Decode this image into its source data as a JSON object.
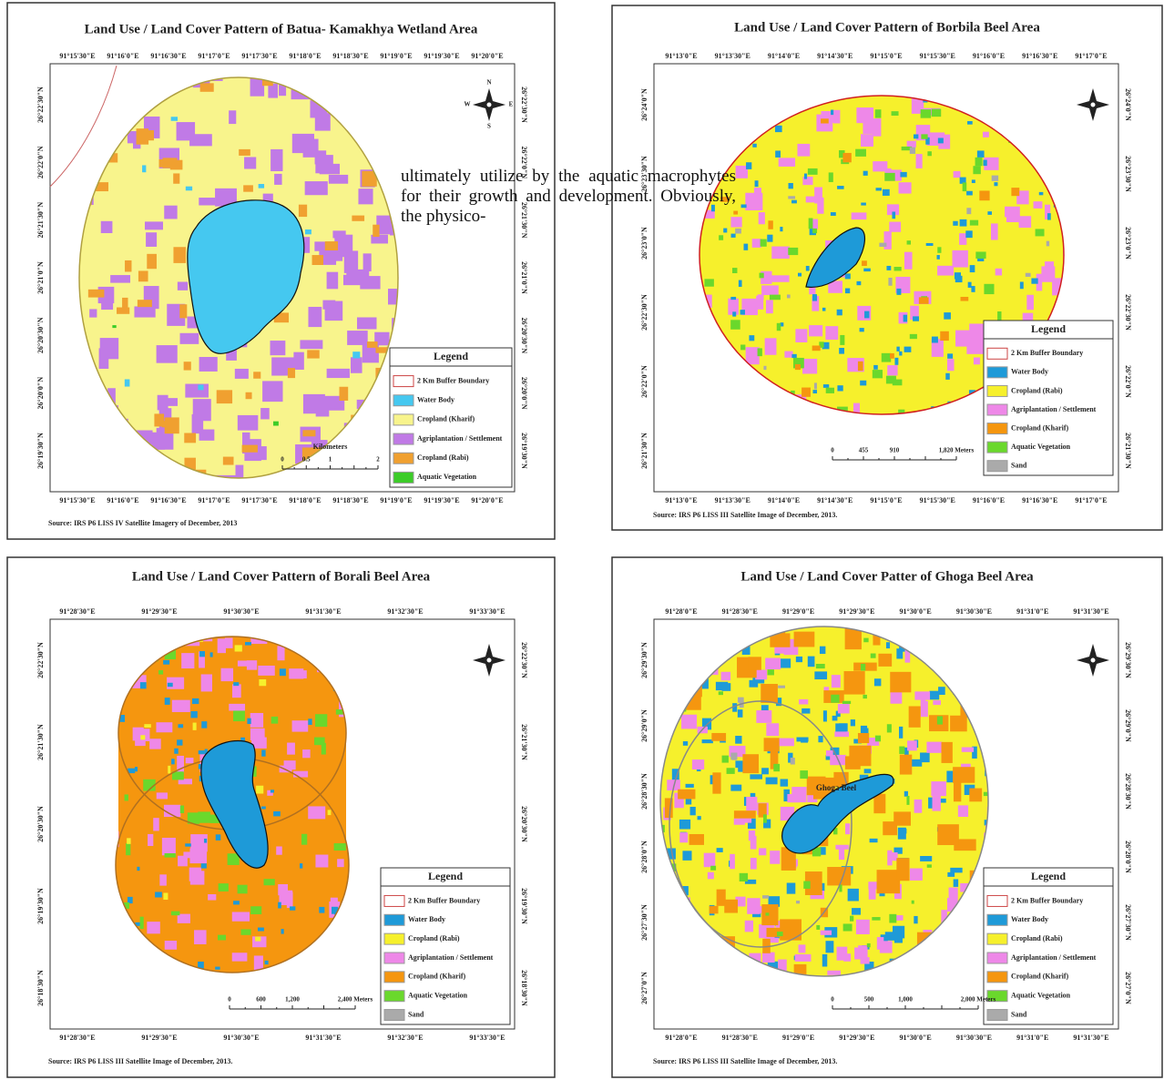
{
  "body_text": "ultimately utilize by the aquatic macrophytes for their growth and development. Obviously, the physico-",
  "maps": [
    {
      "title": "Land Use / Land Cover Pattern of Batua- Kamakhya Wetland Area",
      "x_labels": [
        "91°15'30\"E",
        "91°16'0\"E",
        "91°16'30\"E",
        "91°17'0\"E",
        "91°17'30\"E",
        "91°18'0\"E",
        "91°18'30\"E",
        "91°19'0\"E",
        "91°19'30\"E",
        "91°20'0\"E"
      ],
      "y_labels": [
        "26°22'30\"N",
        "26°22'0\"N",
        "26°21'30\"N",
        "26°21'0\"N",
        "26°20'30\"N",
        "26°20'0\"N",
        "26°19'30\"N"
      ],
      "compass": [
        "N",
        "E",
        "S",
        "W"
      ],
      "legend": {
        "title": "Legend",
        "items": [
          {
            "label": "2 Km Buffer Boundary",
            "color": "#ffffff"
          },
          {
            "label": "Water Body",
            "color": "#45c8f0"
          },
          {
            "label": "Cropland (Kharif)",
            "color": "#f8f48c"
          },
          {
            "label": "Agriplantation / Settlement",
            "color": "#c07ae6"
          },
          {
            "label": "Cropland (Rabi)",
            "color": "#f0a030"
          },
          {
            "label": "Aquatic Vegetation",
            "color": "#3ccc28"
          }
        ]
      },
      "scale": {
        "title": "Kilometers",
        "labels": [
          "0",
          "0.5",
          "1",
          "2"
        ]
      },
      "source": "Source: IRS P6 LISS IV Satellite Imagery of December, 2013"
    },
    {
      "title": "Land Use / Land Cover Pattern of Borbila Beel Area",
      "x_labels": [
        "91°13'0\"E",
        "91°13'30\"E",
        "91°14'0\"E",
        "91°14'30\"E",
        "91°15'0\"E",
        "91°15'30\"E",
        "91°16'0\"E",
        "91°16'30\"E",
        "91°17'0\"E"
      ],
      "y_labels": [
        "26°24'0\"N",
        "26°23'30\"N",
        "26°23'0\"N",
        "26°22'30\"N",
        "26°22'0\"N",
        "26°21'30\"N"
      ],
      "legend": {
        "title": "Legend",
        "items": [
          {
            "label": "2 Km Buffer Boundary",
            "color": "#ffffff"
          },
          {
            "label": "Water Body",
            "color": "#1e9ad8"
          },
          {
            "label": "Cropland (Rabi)",
            "color": "#f6f02c"
          },
          {
            "label": "Agriplantation / Settlement",
            "color": "#ee88e8"
          },
          {
            "label": "Cropland (Kharif)",
            "color": "#f5960f"
          },
          {
            "label": "Aquatic Vegetation",
            "color": "#6ad82c"
          },
          {
            "label": "Sand",
            "color": "#aaaaaa"
          }
        ]
      },
      "scale": {
        "labels": [
          "0",
          "455",
          "910",
          "1,820 Meters"
        ]
      },
      "source": "Source: IRS P6 LISS III Satellite Image of December, 2013."
    },
    {
      "title": "Land Use / Land Cover Pattern of Borali Beel Area",
      "x_labels": [
        "91°28'30\"E",
        "91°29'30\"E",
        "91°30'30\"E",
        "91°31'30\"E",
        "91°32'30\"E",
        "91°33'30\"E"
      ],
      "y_labels": [
        "26°22'30\"N",
        "26°21'30\"N",
        "26°20'30\"N",
        "26°19'30\"N",
        "26°18'30\"N"
      ],
      "legend": {
        "title": "Legend",
        "items": [
          {
            "label": "2 Km Buffer Boundary",
            "color": "#ffffff"
          },
          {
            "label": "Water Body",
            "color": "#1e9ad8"
          },
          {
            "label": "Cropland (Rabi)",
            "color": "#f6f02c"
          },
          {
            "label": "Agriplantation / Settlement",
            "color": "#ee88e8"
          },
          {
            "label": "Cropland (Kharif)",
            "color": "#f5960f"
          },
          {
            "label": "Aquatic Vegetation",
            "color": "#6ad82c"
          },
          {
            "label": "Sand",
            "color": "#aaaaaa"
          }
        ]
      },
      "scale": {
        "labels": [
          "0",
          "600",
          "1,200",
          "2,400 Meters"
        ]
      },
      "source": "Source: IRS P6 LISS III Satellite Image of December, 2013."
    },
    {
      "title": "Land Use / Land Cover Patter of Ghoga Beel Area",
      "x_labels": [
        "91°28'0\"E",
        "91°28'30\"E",
        "91°29'0\"E",
        "91°29'30\"E",
        "91°30'0\"E",
        "91°30'30\"E",
        "91°31'0\"E",
        "91°31'30\"E"
      ],
      "y_labels": [
        "26°29'30\"N",
        "26°29'0\"N",
        "26°28'30\"N",
        "26°28'0\"N",
        "26°27'30\"N",
        "26°27'0\"N"
      ],
      "lake_label": "Ghoga Beel",
      "legend": {
        "title": "Legend",
        "items": [
          {
            "label": "2 Km Buffer Boundary",
            "color": "#ffffff"
          },
          {
            "label": "Water Body",
            "color": "#1e9ad8"
          },
          {
            "label": "Cropland (Rabi)",
            "color": "#f6f02c"
          },
          {
            "label": "Agriplantation / Settlement",
            "color": "#ee88e8"
          },
          {
            "label": "Cropland (Kharif)",
            "color": "#f5960f"
          },
          {
            "label": "Aquatic Vegetation",
            "color": "#6ad82c"
          },
          {
            "label": "Sand",
            "color": "#aaaaaa"
          }
        ]
      },
      "scale": {
        "labels": [
          "0",
          "500",
          "1,000",
          "2,000 Meters"
        ]
      },
      "source": "Source: IRS P6 LISS III Satellite Image of December, 2013."
    }
  ]
}
